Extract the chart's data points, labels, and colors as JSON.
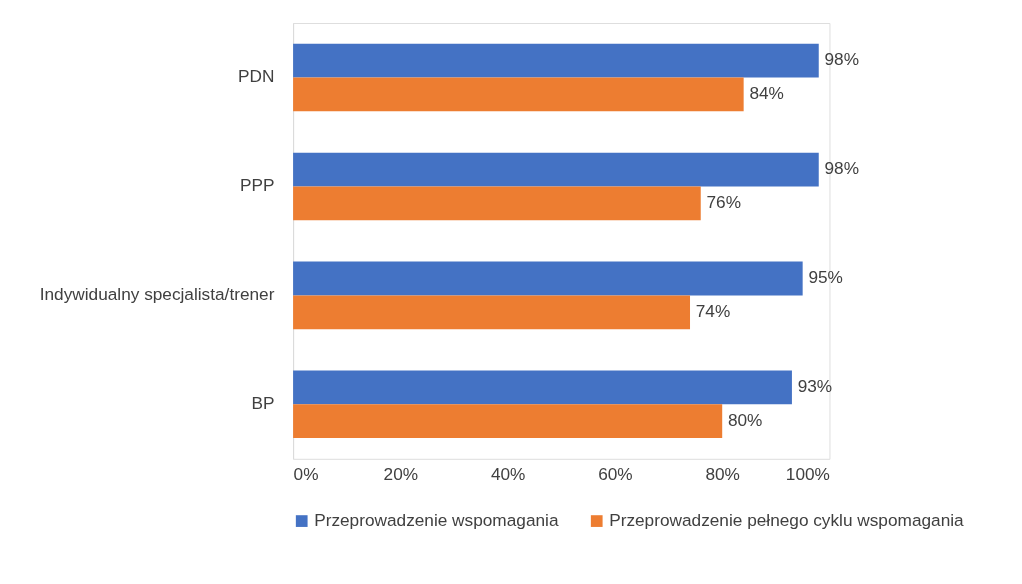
{
  "chart_data": {
    "type": "bar",
    "orientation": "horizontal",
    "categories": [
      "PDN",
      "PPP",
      "Indywidualny specjalista/trener",
      "BP"
    ],
    "series": [
      {
        "name": "Przeprowadzenie wspomagania",
        "color": "#4472c4",
        "values": [
          98,
          98,
          95,
          93
        ],
        "value_labels": [
          "98%",
          "98%",
          "95%",
          "93%"
        ]
      },
      {
        "name": "Przeprowadzenie pełnego cyklu wspomagania",
        "color": "#ed7d31",
        "values": [
          84,
          76,
          74,
          80
        ],
        "value_labels": [
          "84%",
          "76%",
          "74%",
          "80%"
        ]
      }
    ],
    "xlim": [
      0,
      100
    ],
    "xticks": [
      {
        "value": 0,
        "label": "0%"
      },
      {
        "value": 20,
        "label": "20%"
      },
      {
        "value": 40,
        "label": "40%"
      },
      {
        "value": 60,
        "label": "60%"
      },
      {
        "value": 80,
        "label": "80%"
      },
      {
        "value": 100,
        "label": "100%"
      }
    ],
    "grid": false,
    "legend": "bottom"
  }
}
